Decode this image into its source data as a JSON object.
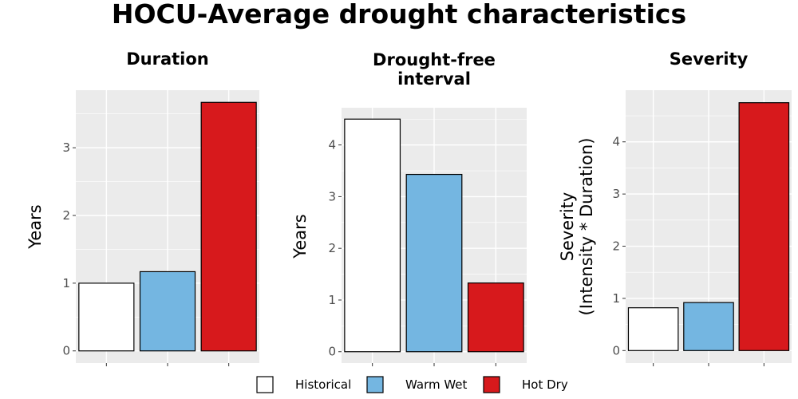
{
  "title": "HOCU-Average drought characteristics",
  "legend": {
    "items": [
      {
        "label": "Historical",
        "color": "#ffffff"
      },
      {
        "label": "Warm Wet",
        "color": "#74b6e1"
      },
      {
        "label": "Hot Dry",
        "color": "#d7191c"
      }
    ]
  },
  "chart_data": [
    {
      "type": "bar",
      "title": "Duration",
      "title_lines": [
        "Duration"
      ],
      "ylabel": "Years",
      "ylabel_lines": [
        "Years"
      ],
      "categories": [
        "Historical",
        "Warm Wet",
        "Hot Dry"
      ],
      "values": [
        1.0,
        1.17,
        3.67
      ],
      "colors": [
        "#ffffff",
        "#74b6e1",
        "#d7191c"
      ],
      "ylim": [
        -0.18,
        3.85
      ],
      "yticks": [
        0,
        1,
        2,
        3
      ],
      "ytick_labels": [
        "0",
        "1",
        "2",
        "3"
      ],
      "grid": true
    },
    {
      "type": "bar",
      "title": "Drought-free interval",
      "title_lines": [
        "Drought-free",
        "interval"
      ],
      "ylabel": "Years",
      "ylabel_lines": [
        "Years"
      ],
      "categories": [
        "Historical",
        "Warm Wet",
        "Hot Dry"
      ],
      "values": [
        4.5,
        3.43,
        1.33
      ],
      "colors": [
        "#ffffff",
        "#74b6e1",
        "#d7191c"
      ],
      "ylim": [
        -0.22,
        4.72
      ],
      "yticks": [
        0,
        1,
        2,
        3,
        4
      ],
      "ytick_labels": [
        "0",
        "1",
        "2",
        "3",
        "4"
      ],
      "grid": true
    },
    {
      "type": "bar",
      "title": "Severity",
      "title_lines": [
        "Severity"
      ],
      "ylabel": "Severity (Intensity * Duration)",
      "ylabel_lines": [
        "Severity",
        "(Intensity * Duration)"
      ],
      "categories": [
        "Historical",
        "Warm Wet",
        "Hot Dry"
      ],
      "values": [
        0.82,
        0.92,
        4.75
      ],
      "colors": [
        "#ffffff",
        "#74b6e1",
        "#d7191c"
      ],
      "ylim": [
        -0.24,
        4.99
      ],
      "yticks": [
        0,
        1,
        2,
        3,
        4
      ],
      "ytick_labels": [
        "0",
        "1",
        "2",
        "3",
        "4"
      ],
      "grid": true
    }
  ]
}
